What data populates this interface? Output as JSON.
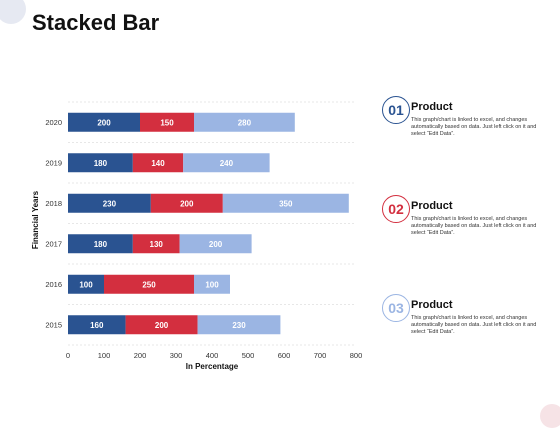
{
  "page": {
    "title": "Stacked Bar"
  },
  "colors": {
    "series1": "#2a5391",
    "series2": "#d32f3f",
    "series3": "#9bb5e3",
    "grid": "#e0e0e0"
  },
  "chart_data": {
    "type": "bar",
    "orientation": "horizontal",
    "stacked": true,
    "categories": [
      "2020",
      "2019",
      "2018",
      "2017",
      "2016",
      "2015"
    ],
    "series": [
      {
        "values": [
          200,
          180,
          230,
          180,
          100,
          160
        ]
      },
      {
        "values": [
          150,
          140,
          200,
          130,
          250,
          200
        ]
      },
      {
        "values": [
          280,
          240,
          350,
          200,
          100,
          230
        ]
      }
    ],
    "xlabel": "In Percentage",
    "ylabel": "Financial Years",
    "xlim": [
      0,
      800
    ],
    "xticks": [
      0,
      100,
      200,
      300,
      400,
      500,
      600,
      700,
      800
    ],
    "grid": true,
    "data_labels": true
  },
  "legend_items": [
    {
      "number": "01",
      "title": "Product",
      "desc": "This graph/chart is linked to excel, and changes automatically based on data. Just left click on it and select “Edit Data”.",
      "color": "#2a5391"
    },
    {
      "number": "02",
      "title": "Product",
      "desc": "This graph/chart is linked to excel, and changes automatically based on data. Just left click on it and select “Edit Data”.",
      "color": "#d32f3f"
    },
    {
      "number": "03",
      "title": "Product",
      "desc": "This graph/chart is linked to excel, and changes automatically based on data. Just left click on it and select “Edit Data”.",
      "color": "#9bb5e3"
    }
  ]
}
